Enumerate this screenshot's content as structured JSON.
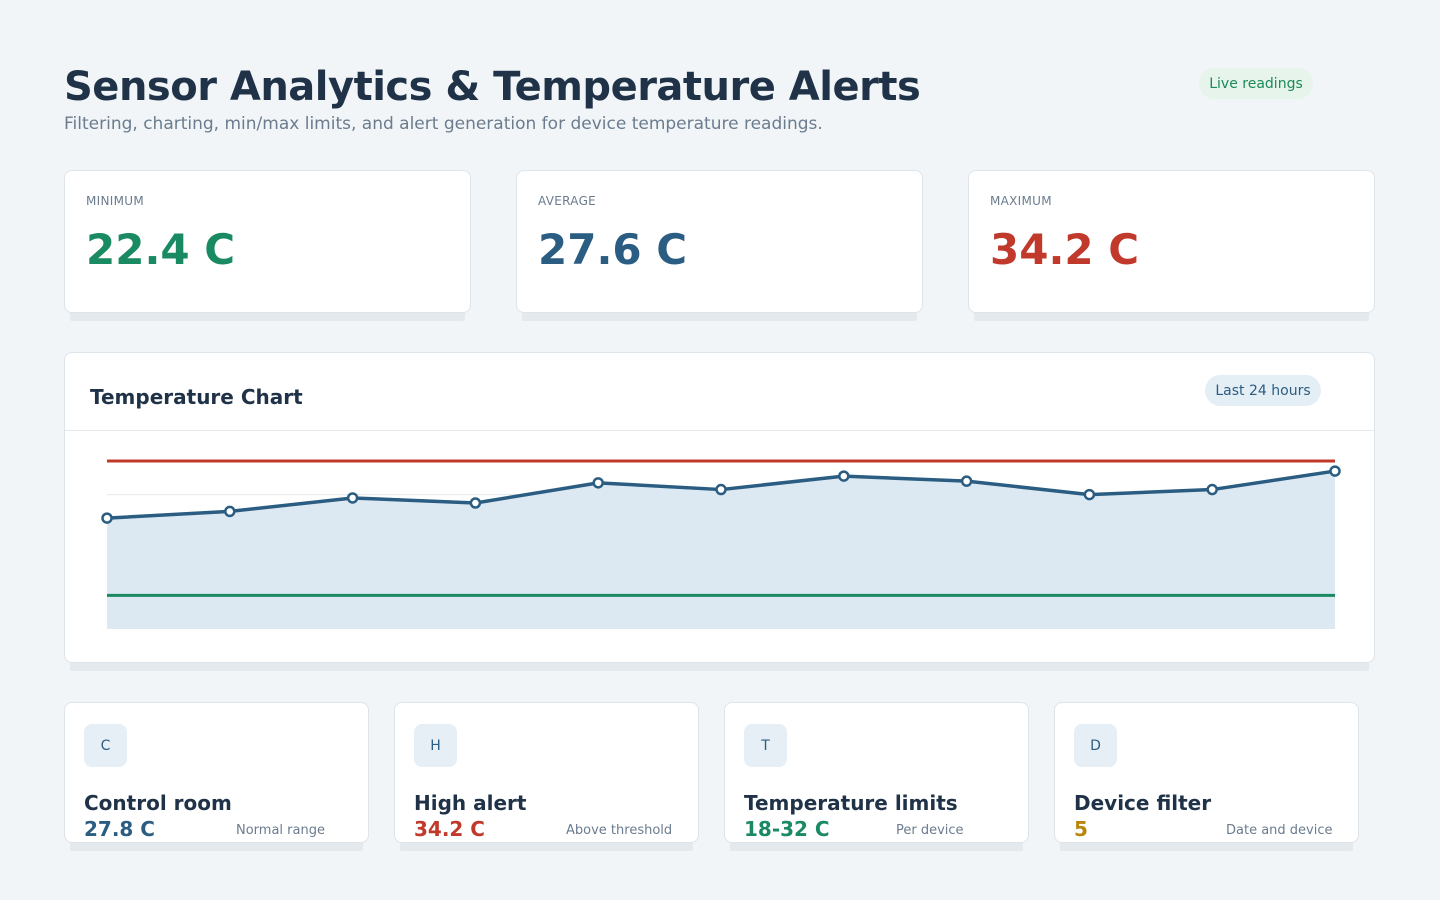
{
  "header": {
    "title": "Sensor Analytics & Temperature Alerts",
    "subtitle": "Filtering, charting, min/max limits, and alert generation for device temperature readings.",
    "status_badge": "Live readings"
  },
  "stats": [
    {
      "label": "MINIMUM",
      "value": "22.4 C",
      "color": "#1a8a62"
    },
    {
      "label": "AVERAGE",
      "value": "27.6 C",
      "color": "#2b5d82"
    },
    {
      "label": "MAXIMUM",
      "value": "34.2 C",
      "color": "#c0392b"
    }
  ],
  "chart": {
    "title": "Temperature Chart",
    "range_label": "Last 24 hours"
  },
  "chart_data": {
    "type": "area",
    "x": [
      1,
      2,
      3,
      4,
      5,
      6,
      7,
      8,
      9,
      10,
      11
    ],
    "series": [
      {
        "values": [
          28.6,
          29.0,
          29.8,
          29.5,
          30.7,
          30.3,
          31.1,
          30.8,
          30.0,
          30.3,
          31.4
        ],
        "color": "#2b5d82",
        "fill": "#dce9f3"
      }
    ],
    "ylim": [
      22,
      32
    ],
    "thresholds": [
      {
        "value": 32,
        "color": "#c0392b"
      },
      {
        "value": 24,
        "color": "#1a8a62"
      }
    ],
    "grid": true,
    "legend": "none"
  },
  "info_cards": [
    {
      "letter": "C",
      "title": "Control room",
      "value": "27.8 C",
      "note": "Normal range",
      "color": "#2b5d82"
    },
    {
      "letter": "H",
      "title": "High alert",
      "value": "34.2 C",
      "note": "Above threshold",
      "color": "#c0392b"
    },
    {
      "letter": "T",
      "title": "Temperature limits",
      "value": "18-32 C",
      "note": "Per device",
      "color": "#1a8a62"
    },
    {
      "letter": "D",
      "title": "Device filter",
      "value": "5",
      "note": "Date and device",
      "color": "#b7860b"
    }
  ]
}
